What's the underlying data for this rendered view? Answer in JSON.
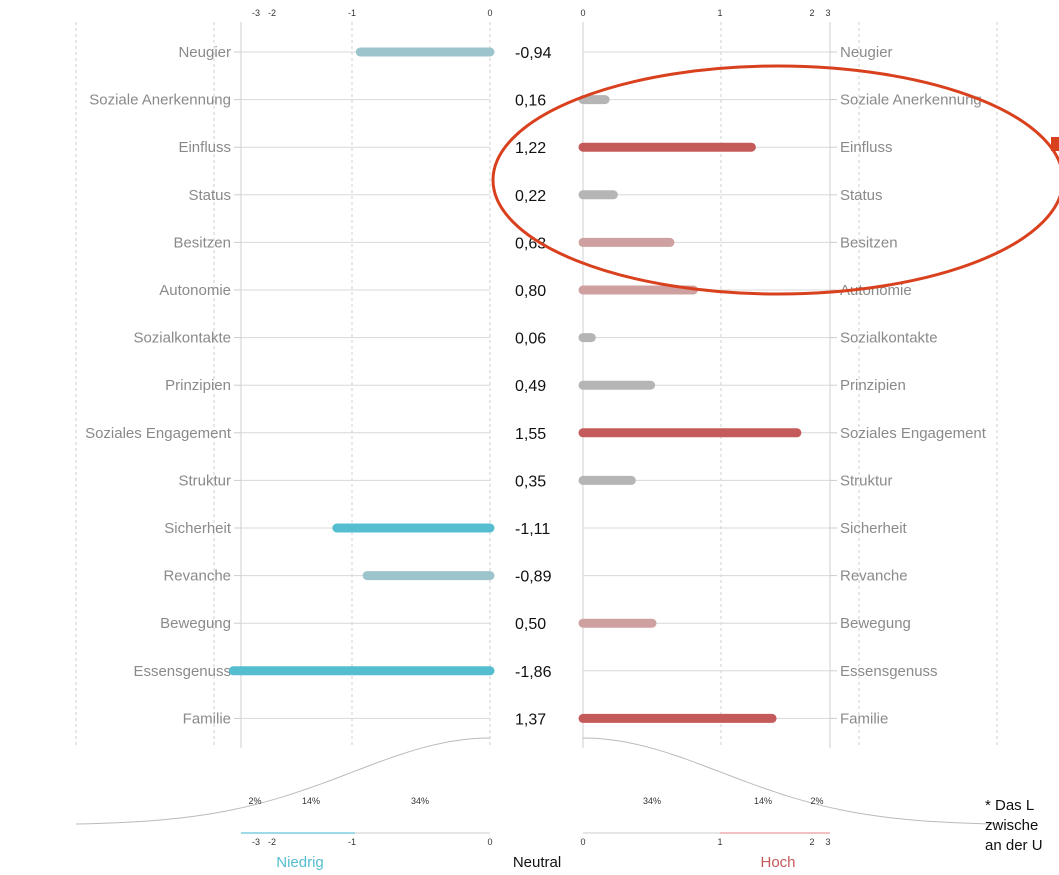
{
  "chart_data": {
    "type": "bar",
    "layout": "diverging",
    "categories": [
      "Neugier",
      "Soziale Anerkennung",
      "Einfluss",
      "Status",
      "Besitzen",
      "Autonomie",
      "Sozialkontakte",
      "Prinzipien",
      "Soziales Engagement",
      "Struktur",
      "Sicherheit",
      "Revanche",
      "Bewegung",
      "Essensgenuss",
      "Familie"
    ],
    "values": [
      -0.94,
      0.16,
      1.22,
      0.22,
      0.63,
      0.8,
      0.06,
      0.49,
      1.55,
      0.35,
      -1.11,
      -0.89,
      0.5,
      -1.86,
      1.37
    ],
    "value_labels": [
      "-0,94",
      "0,16",
      "1,22",
      "0,22",
      "0,63",
      "0,80",
      "0,06",
      "0,49",
      "1,55",
      "0,35",
      "-1,11",
      "-0,89",
      "0,50",
      "-1,86",
      "1,37"
    ],
    "bar_colors": [
      "#9cc4cc",
      "#b5b5b5",
      "#c55a5a",
      "#b5b5b5",
      "#cfa0a0",
      "#cfa0a0",
      "#b5b5b5",
      "#b5b5b5",
      "#c55a5a",
      "#b5b5b5",
      "#55bdd0",
      "#9cc4cc",
      "#cfa0a0",
      "#55bdd0",
      "#c55a5a"
    ],
    "left_axis": {
      "ticks": [
        -3,
        -2,
        -1,
        0
      ],
      "tick_labels": [
        "-3",
        "-2",
        "-1",
        "0"
      ],
      "range": [
        -3,
        0
      ]
    },
    "right_axis": {
      "ticks": [
        0,
        1,
        2,
        3
      ],
      "tick_labels": [
        "0",
        "1",
        "2",
        "3"
      ],
      "range": [
        0,
        3
      ]
    },
    "distribution_percentages_left": [
      "2%",
      "14%",
      "34%"
    ],
    "distribution_percentages_right": [
      "34%",
      "14%",
      "2%"
    ],
    "footer_labels": {
      "low": "Niedrig",
      "neutral": "Neutral",
      "high": "Hoch"
    },
    "grid": true
  },
  "annotation": {
    "shape": "ellipse",
    "color": "#d9411e"
  },
  "footnote": {
    "lines": [
      "* Das L",
      "zwische",
      "an der U"
    ]
  },
  "colors": {
    "low": "#55bdd0",
    "high": "#c55a5a",
    "neutral": "#b5b5b5",
    "axis_line": "#cccccc",
    "annotation": "#d9411e"
  }
}
